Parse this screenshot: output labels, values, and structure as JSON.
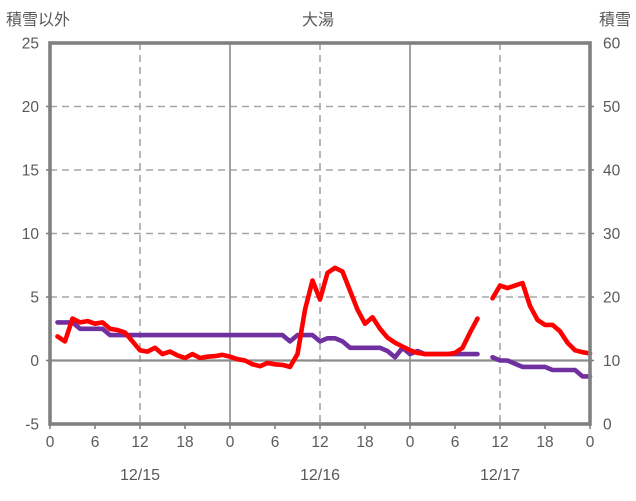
{
  "header": {
    "left_axis_title": "積雪以外",
    "chart_title": "大湯",
    "right_axis_title": "積雪"
  },
  "colors": {
    "text": "#595959",
    "frame": "#808080",
    "solid_grid": "#8c8c8c",
    "dashed_grid": "#a6a6a6",
    "series_red": "#ff0000",
    "series_purple": "#7030a0",
    "background": "#ffffff"
  },
  "chart_data": {
    "type": "line",
    "title": "大湯",
    "left_axis": {
      "label": "積雪以外",
      "range": [
        -5,
        25
      ],
      "ticks": [
        25,
        20,
        15,
        10,
        5,
        0,
        -5
      ]
    },
    "right_axis": {
      "label": "積雪",
      "range": [
        0,
        60
      ],
      "ticks": [
        60,
        50,
        40,
        30,
        20,
        10,
        0
      ]
    },
    "x_range": [
      0,
      72
    ],
    "x_ticks": {
      "hours": [
        0,
        6,
        12,
        18,
        24,
        30,
        36,
        42,
        48,
        54,
        60,
        66,
        72
      ],
      "labels": [
        "0",
        "6",
        "12",
        "18",
        "0",
        "6",
        "12",
        "18",
        "0",
        "6",
        "12",
        "18",
        "0"
      ]
    },
    "date_labels": [
      {
        "label": "12/15",
        "center_hour": 12
      },
      {
        "label": "12/16",
        "center_hour": 36
      },
      {
        "label": "12/17",
        "center_hour": 60
      }
    ],
    "gridlines": {
      "horizontal_dashed_values": [
        20,
        15,
        10,
        5
      ],
      "horizontal_solid_values": [
        0
      ],
      "vertical_dashed_hours": [
        12,
        36,
        60
      ],
      "vertical_solid_hours": [
        24,
        48
      ],
      "grid_on": true
    },
    "legend_position": "none",
    "series": [
      {
        "name": "積雪",
        "axis": "right",
        "color": "#7030a0",
        "x_start_hour": 1,
        "values": [
          16,
          16,
          16,
          15,
          15,
          15,
          15,
          14,
          14,
          14,
          14,
          14,
          14,
          14,
          14,
          14,
          14,
          14,
          14,
          14,
          14,
          14,
          14,
          14,
          14,
          14,
          14,
          14,
          14,
          14,
          14,
          13,
          14,
          14,
          14,
          13,
          13.5,
          13.5,
          13,
          12,
          12,
          12,
          12,
          12,
          11.5,
          10.5,
          12,
          11,
          11.5,
          11,
          11,
          11,
          11,
          11,
          11,
          11,
          11,
          null,
          10.5,
          10,
          10,
          9.5,
          9,
          9,
          9,
          9,
          8.5,
          8.5,
          8.5,
          8.5,
          7.5,
          7.5
        ]
      },
      {
        "name": "積雪以外",
        "axis": "left",
        "color": "#ff0000",
        "x_start_hour": 1,
        "values": [
          1.9,
          1.5,
          3.3,
          3.0,
          3.1,
          2.9,
          3.0,
          2.5,
          2.4,
          2.2,
          1.5,
          0.8,
          0.7,
          1.0,
          0.5,
          0.7,
          0.4,
          0.2,
          0.5,
          0.2,
          0.3,
          0.35,
          0.45,
          0.3,
          0.1,
          0.0,
          -0.3,
          -0.45,
          -0.2,
          -0.3,
          -0.35,
          -0.5,
          0.5,
          4.0,
          6.3,
          4.8,
          6.9,
          7.3,
          7.0,
          5.5,
          4.0,
          2.9,
          3.4,
          2.5,
          1.8,
          1.4,
          1.1,
          0.8,
          0.6,
          0.5,
          0.5,
          0.5,
          0.5,
          0.6,
          1.0,
          2.2,
          3.3,
          null,
          4.9,
          5.9,
          5.7,
          5.9,
          6.1,
          4.3,
          3.2,
          2.8,
          2.8,
          2.3,
          1.4,
          0.8,
          0.65,
          0.55
        ]
      }
    ]
  }
}
